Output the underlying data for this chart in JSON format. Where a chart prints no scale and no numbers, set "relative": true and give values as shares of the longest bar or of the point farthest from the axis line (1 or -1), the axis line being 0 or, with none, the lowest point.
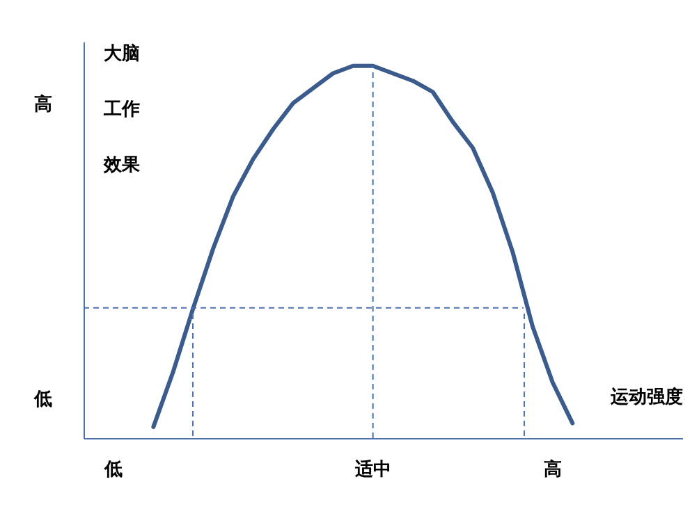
{
  "chart_data": {
    "type": "line",
    "relative": true,
    "ylabel": "大脑工作效果",
    "xlabel": "运动强度",
    "annotations": [
      "高",
      "低"
    ],
    "categories": [
      null,
      "低",
      null,
      null,
      null,
      null,
      null,
      null,
      null,
      null,
      null,
      null,
      null,
      null,
      "适中",
      null,
      null,
      null,
      null,
      null,
      null,
      null,
      null,
      "高",
      null,
      null,
      null,
      null,
      null,
      null
    ],
    "series": [
      {
        "color": "#3b5b8c",
        "values": [
          null,
          null,
          null,
          0.03,
          0.18,
          0.35,
          0.51,
          0.65,
          0.75,
          0.83,
          0.9,
          0.94,
          0.98,
          1.0,
          1.0,
          0.98,
          0.96,
          0.93,
          0.85,
          0.78,
          0.66,
          0.5,
          0.3,
          0.15,
          0.04,
          null,
          null,
          null,
          null,
          null
        ]
      }
    ],
    "ref_lines": [
      {
        "axis": "y",
        "value": 0.35,
        "color": "#4a72b0",
        "line_style": "dashed"
      },
      {
        "axis": "x",
        "value": "适中",
        "color": "#4a72b0",
        "line_style": "dashed"
      }
    ],
    "grid": false,
    "marker": "none",
    "line_style": "solid"
  }
}
